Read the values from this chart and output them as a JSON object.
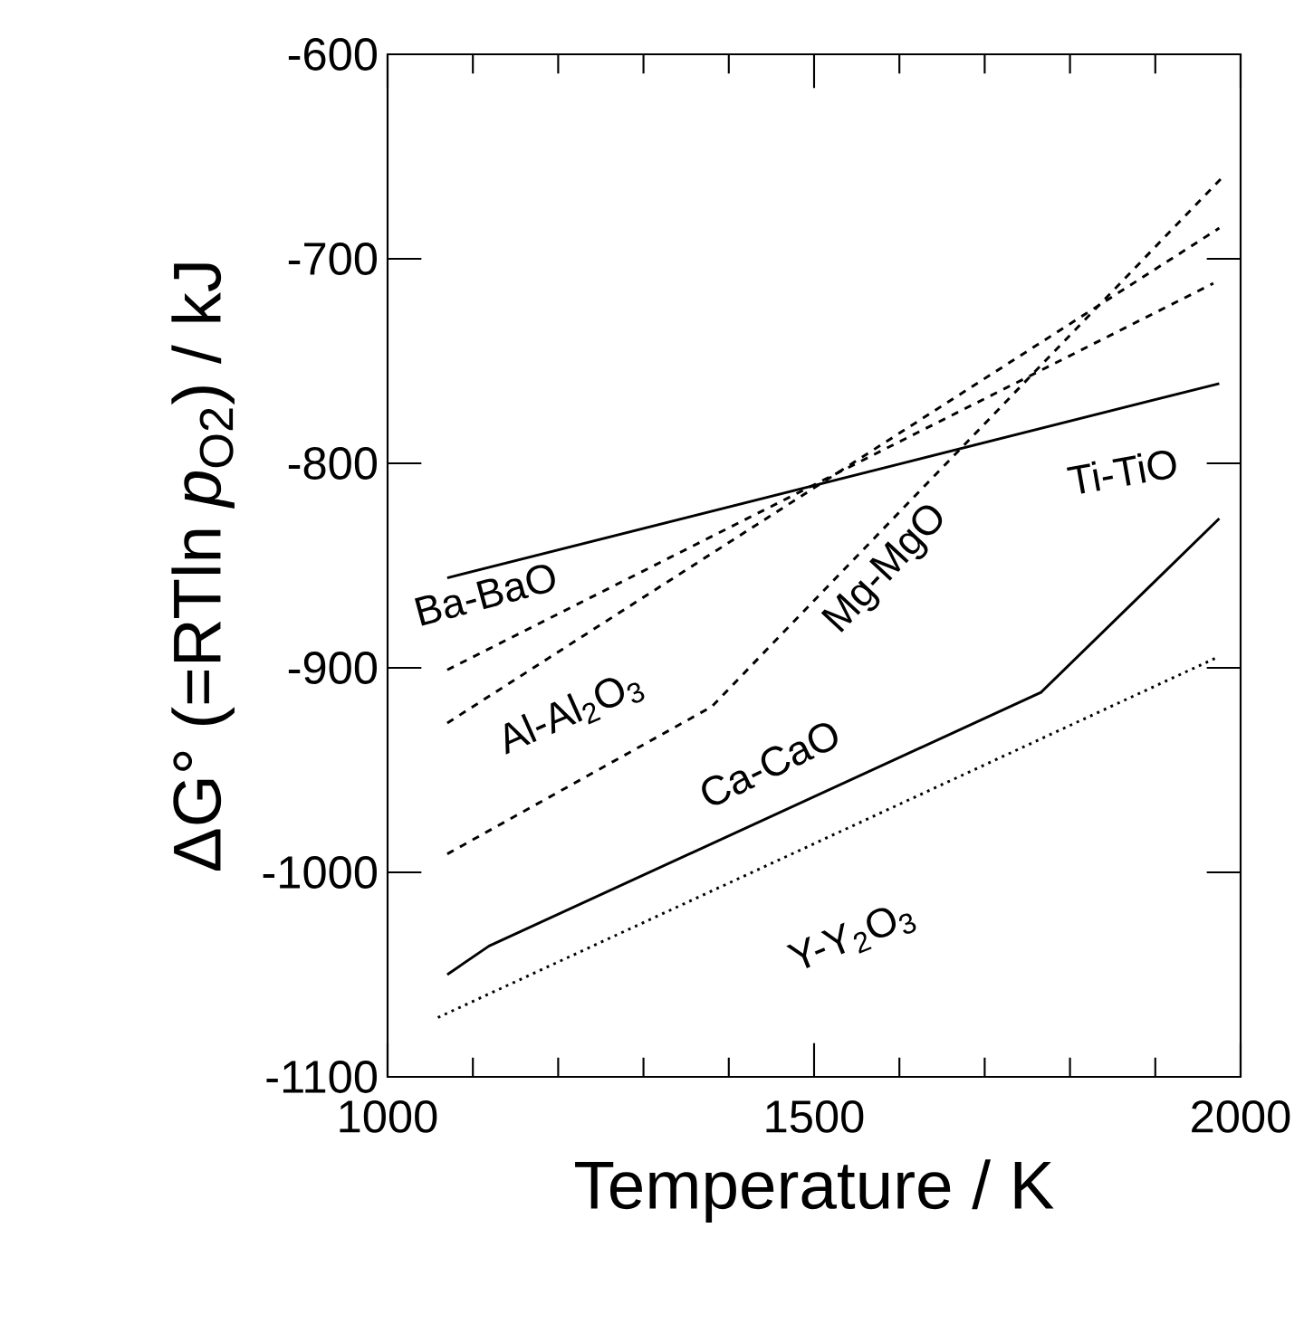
{
  "chart_data": {
    "type": "line",
    "xlabel": "Temperature / K",
    "ylabel": "ΔG° (=RTln *p*$_{O2}$) / kJ",
    "series": [
      {
        "name": "Ti-TiO",
        "color": "#000000",
        "line_style": "solid",
        "x": [
          1070,
          1975
        ],
        "values": [
          -856,
          -761
        ]
      },
      {
        "name": "Ba-BaO",
        "color": "#000000",
        "line_style": "dashed",
        "x": [
          1070,
          1968
        ],
        "values": [
          -901,
          -712
        ]
      },
      {
        "name": "Al-Al$_{2}$O$_{3}$",
        "color": "#000000",
        "line_style": "dashed",
        "x": [
          1070,
          1975
        ],
        "values": [
          -927,
          -685
        ]
      },
      {
        "name": "Mg-MgO",
        "color": "#000000",
        "line_style": "dashed",
        "x": [
          1070,
          1380,
          1979
        ],
        "values": [
          -991,
          -919,
          -660
        ]
      },
      {
        "name": "Ca-CaO",
        "color": "#000000",
        "line_style": "solid",
        "x": [
          1070,
          1119,
          1766,
          1975
        ],
        "values": [
          -1050,
          -1036,
          -912,
          -827
        ]
      },
      {
        "name": "Y-Y$_{2}$O$_{3}$",
        "color": "#000000",
        "line_style": "dotted",
        "x": [
          1059,
          1972
        ],
        "values": [
          -1071,
          -895
        ]
      }
    ],
    "xlim": [
      1000,
      2000
    ],
    "ylim": [
      -1100,
      -600
    ],
    "xticks": [
      1000,
      1500,
      2000
    ],
    "yticks": [
      -1100,
      -1000,
      -900,
      -800,
      -700,
      -600
    ]
  }
}
